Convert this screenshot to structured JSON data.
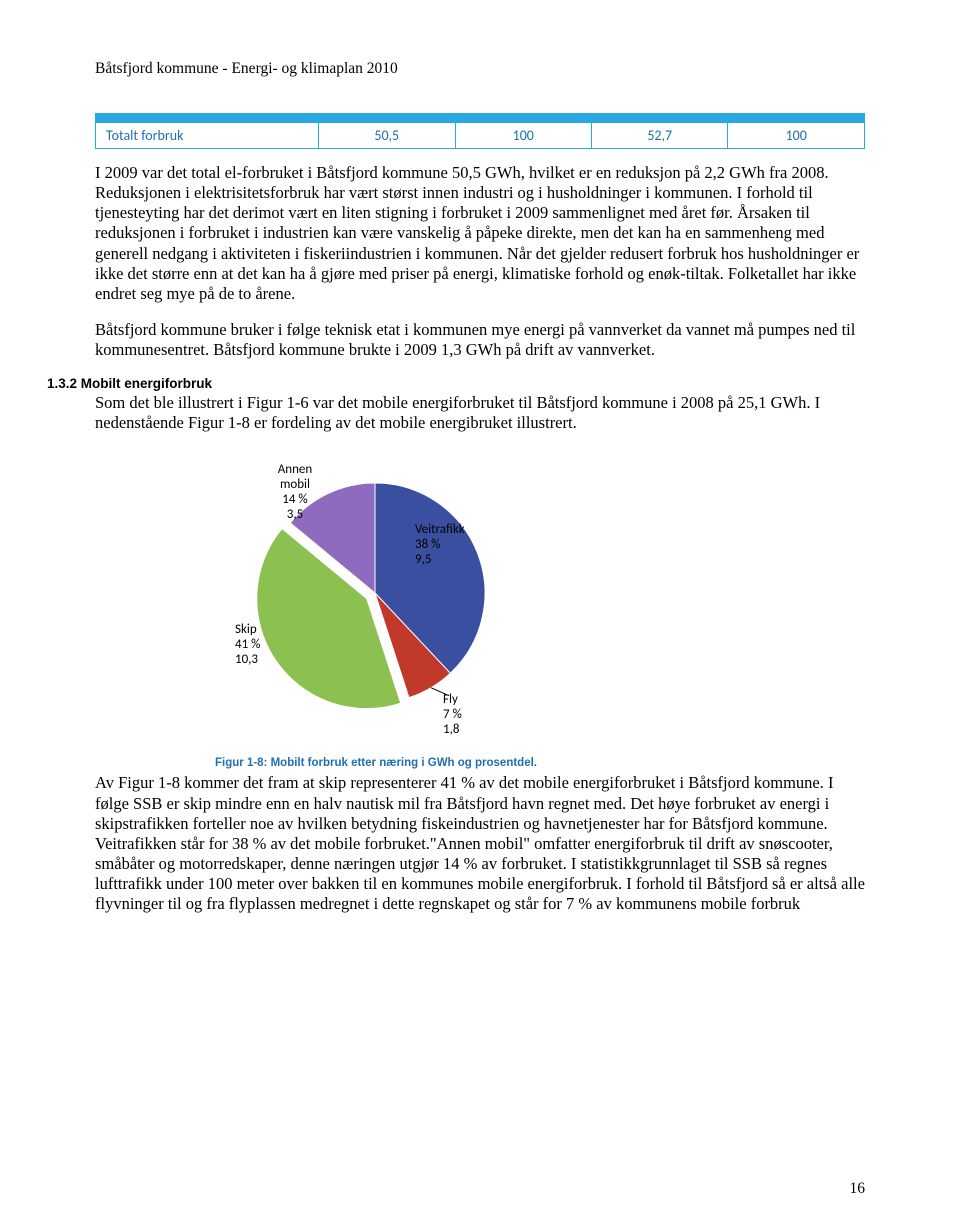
{
  "page": {
    "header": "Båtsfjord kommune - Energi- og klimaplan 2010",
    "number": "16"
  },
  "table": {
    "row_label": "Totalt forbruk",
    "cells": [
      "50,5",
      "100",
      "52,7",
      "100"
    ],
    "border_color": "#29a9e0",
    "header_bg": "#29a9e0",
    "text_color": "#1f6fb2"
  },
  "paragraphs": {
    "p1": "I 2009 var det total el-forbruket i Båtsfjord kommune 50,5 GWh, hvilket er en reduksjon på 2,2 GWh fra 2008. Reduksjonen i elektrisitetsforbruk har vært størst innen industri og i husholdninger i kommunen. I forhold til tjenesteyting har det derimot vært en liten stigning i forbruket i 2009 sammenlignet med året før. Årsaken til reduksjonen i forbruket i industrien kan være vanskelig å påpeke direkte, men det kan ha en sammenheng med generell nedgang i aktiviteten i fiskeriindustrien i kommunen. Når det gjelder redusert forbruk hos husholdninger er ikke det større enn at det kan ha å gjøre med priser på energi, klimatiske forhold og enøk-tiltak. Folketallet har ikke endret seg mye på de to årene.",
    "p2": "Båtsfjord kommune bruker i følge teknisk etat i kommunen mye energi på vannverket da vannet må pumpes ned til kommunesentret. Båtsfjord kommune brukte i 2009 1,3 GWh på drift av vannverket.",
    "p3": "Som det ble illustrert i Figur 1-6 var det mobile energiforbruket til Båtsfjord kommune i 2008 på 25,1 GWh. I nedenstående Figur 1-8 er fordeling av det mobile energibruket illustrert.",
    "p4": "Av Figur 1-8 kommer det fram at skip representerer 41 % av det mobile energiforbruket i Båtsfjord kommune. I følge SSB er skip mindre enn en halv nautisk mil fra Båtsfjord havn regnet med. Det høye forbruket av energi i skipstrafikken forteller noe av hvilken betydning fiskeindustrien og havnetjenester har for Båtsfjord kommune. Veitrafikken står for 38 % av det mobile forbruket.\"Annen mobil\" omfatter energiforbruk til drift av snøscooter, småbåter og motorredskaper, denne næringen utgjør 14 % av forbruket. I statistikkgrunnlaget til SSB så regnes lufttrafikk under 100 meter over bakken til en kommunes mobile energiforbruk. I forhold til Båtsfjord så er altså alle flyvninger til og fra flyplassen medregnet i dette regnskapet og står for 7 % av kommunens mobile forbruk"
  },
  "section": {
    "number": "1.3.2",
    "title": "Mobilt energiforbruk"
  },
  "chart": {
    "type": "pie",
    "caption": "Figur 1-8: Mobilt forbruk etter næring i GWh og prosentdel.",
    "slices": [
      {
        "name": "Veitrafikk",
        "pct": 38,
        "value": "9,5",
        "color": "#3b4fa0"
      },
      {
        "name": "Fly",
        "pct": 7,
        "value": "1,8",
        "color": "#c0392b"
      },
      {
        "name": "Skip",
        "pct": 41,
        "value": "10,3",
        "color": "#8cc152"
      },
      {
        "name": "Annen mobil",
        "pct": 14,
        "value": "3,5",
        "color": "#8e6bbf"
      }
    ],
    "label_font_family": "Calibri, Arial, sans-serif",
    "label_font_size": 13,
    "label_color": "#000000",
    "background": "#ffffff",
    "radius": 110,
    "explode_skip": 10
  }
}
